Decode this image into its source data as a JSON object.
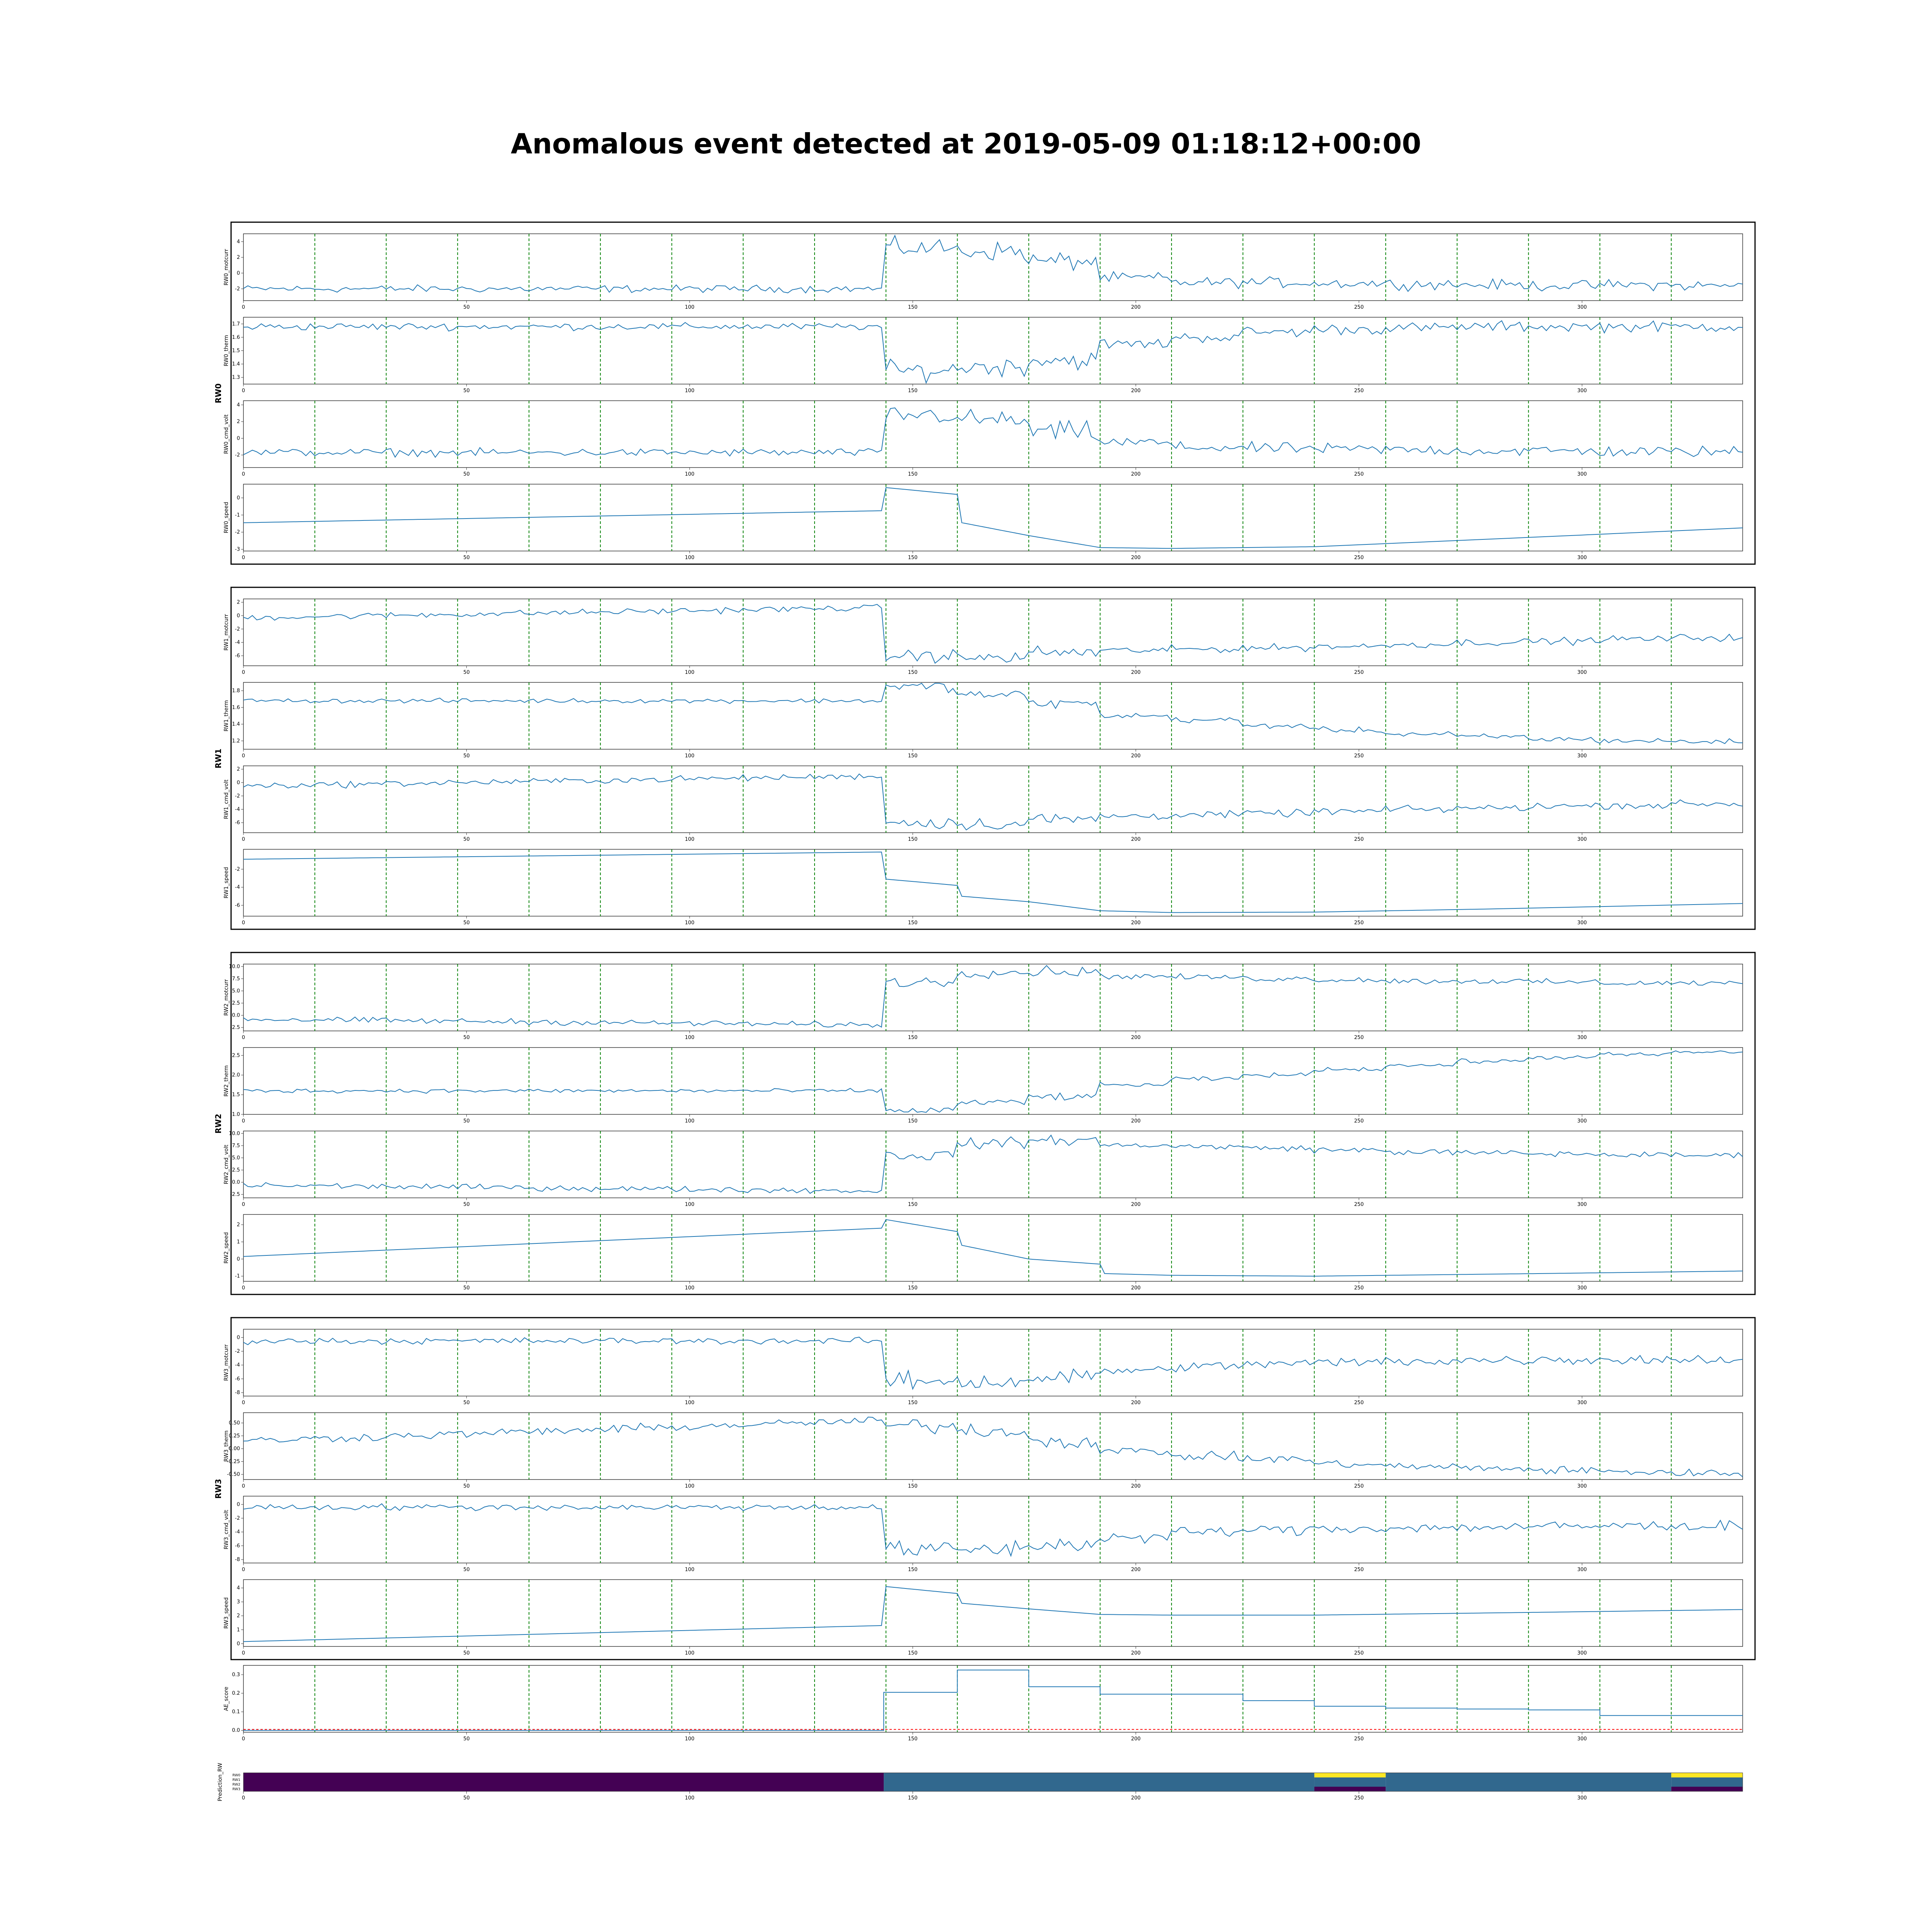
{
  "title": "Anomalous event detected at 2019-05-09 01:18:12+00:00",
  "chart_data": {
    "type": "line",
    "x_range": [
      0,
      336
    ],
    "x_ticks": [
      0,
      50,
      100,
      150,
      200,
      250,
      300
    ],
    "event_markers": [
      16,
      32,
      48,
      64,
      80,
      96,
      112,
      128,
      144,
      160,
      176,
      192,
      208,
      224,
      240,
      256,
      272,
      288,
      304,
      320
    ],
    "grid": false,
    "colors": {
      "series": "#1f77b4",
      "marker": "#008000",
      "threshold": "#ff0000"
    },
    "groups": [
      {
        "name": "RW0",
        "panels": [
          {
            "ylabel": "RW0_motcurr",
            "ylim": [
              -3.5,
              5
            ],
            "yticks": [
              "-2",
              "0",
              "2",
              "4"
            ],
            "shape": {
              "kind": "noisy",
              "pre": -2,
              "segs": [
                3.2,
                2.8,
                1.5,
                -0.6,
                -1.2,
                -1.2,
                -1.3,
                -1.4,
                -1.5,
                -1.6,
                -1.5,
                -1.6
              ],
              "noise_pre": 0.35,
              "noise_post": 0.5
            }
          },
          {
            "ylabel": "RW0_therm",
            "ylim": [
              1.25,
              1.75
            ],
            "yticks": [
              "1.3",
              "1.4",
              "1.5",
              "1.6",
              "1.7"
            ],
            "shape": {
              "kind": "noisy",
              "pre": 1.68,
              "segs": [
                1.35,
                1.38,
                1.43,
                1.55,
                1.6,
                1.64,
                1.66,
                1.67,
                1.68,
                1.68,
                1.68,
                1.68
              ],
              "noise_pre": 0.02,
              "noise_post": 0.03
            }
          },
          {
            "ylabel": "RW0_cmd_volt",
            "ylim": [
              -3.5,
              4.5
            ],
            "yticks": [
              "-2",
              "0",
              "2",
              "4"
            ],
            "shape": {
              "kind": "noisy",
              "pre": -1.7,
              "segs": [
                2.8,
                2.2,
                0.8,
                -0.5,
                -1.1,
                -1.2,
                -1.3,
                -1.4,
                -1.5,
                -1.5,
                -1.6,
                -1.6
              ],
              "noise_pre": 0.35,
              "noise_post": 0.5
            }
          },
          {
            "ylabel": "RW0_speed",
            "ylim": [
              -3.1,
              0.8
            ],
            "yticks": [
              "-3",
              "-2",
              "-1",
              "0"
            ],
            "shape": {
              "kind": "smooth",
              "pts": [
                [
                  0,
                  -1.45
                ],
                [
                  143,
                  -0.75
                ],
                [
                  144,
                  0.6
                ],
                [
                  160,
                  0.2
                ],
                [
                  161,
                  -1.45
                ],
                [
                  176,
                  -2.2
                ],
                [
                  192,
                  -2.9
                ],
                [
                  208,
                  -2.95
                ],
                [
                  240,
                  -2.85
                ],
                [
                  280,
                  -2.4
                ],
                [
                  336,
                  -1.75
                ]
              ]
            }
          }
        ]
      },
      {
        "name": "RW1",
        "panels": [
          {
            "ylabel": "RW1_motcurr",
            "ylim": [
              -7.5,
              2.5
            ],
            "yticks": [
              "-6",
              "-4",
              "-2",
              "0",
              "2"
            ],
            "shape": {
              "kind": "noisy_trend",
              "pre_start": -0.3,
              "pre_end": 1.2,
              "segs": [
                -6.0,
                -6.3,
                -5.5,
                -5.2,
                -5.0,
                -4.8,
                -4.6,
                -4.3,
                -4.0,
                -3.8,
                -3.5,
                -3.3
              ],
              "noise_pre": 0.35,
              "noise_post": 0.4
            }
          },
          {
            "ylabel": "RW1_therm",
            "ylim": [
              1.1,
              1.9
            ],
            "yticks": [
              "1.2",
              "1.4",
              "1.6",
              "1.8"
            ],
            "shape": {
              "kind": "noisy",
              "pre": 1.68,
              "segs": [
                1.85,
                1.75,
                1.65,
                1.5,
                1.45,
                1.38,
                1.33,
                1.28,
                1.25,
                1.22,
                1.2,
                1.19
              ],
              "noise_pre": 0.02,
              "noise_post": 0.025
            }
          },
          {
            "ylabel": "RW1_cmd_volt",
            "ylim": [
              -7.5,
              2.5
            ],
            "yticks": [
              "-6",
              "-4",
              "-2",
              "0",
              "2"
            ],
            "shape": {
              "kind": "noisy_trend",
              "pre_start": -0.5,
              "pre_end": 1.0,
              "segs": [
                -6.0,
                -6.2,
                -5.5,
                -5.0,
                -4.8,
                -4.6,
                -4.3,
                -4.0,
                -3.8,
                -3.5,
                -3.4,
                -3.2
              ],
              "noise_pre": 0.35,
              "noise_post": 0.4
            }
          },
          {
            "ylabel": "RW1_speed",
            "ylim": [
              -7.2,
              0.2
            ],
            "yticks": [
              "-6",
              "-4",
              "-2"
            ],
            "shape": {
              "kind": "smooth",
              "pts": [
                [
                  0,
                  -0.9
                ],
                [
                  143,
                  -0.1
                ],
                [
                  144,
                  -3.1
                ],
                [
                  160,
                  -3.8
                ],
                [
                  161,
                  -5.0
                ],
                [
                  176,
                  -5.6
                ],
                [
                  192,
                  -6.6
                ],
                [
                  208,
                  -6.8
                ],
                [
                  240,
                  -6.75
                ],
                [
                  280,
                  -6.4
                ],
                [
                  336,
                  -5.8
                ]
              ]
            }
          }
        ]
      },
      {
        "name": "RW2",
        "panels": [
          {
            "ylabel": "RW2_motcurr",
            "ylim": [
              -3.2,
              10.5
            ],
            "yticks": [
              "-2.5",
              "0.0",
              "2.5",
              "5.0",
              "7.5",
              "10.0"
            ],
            "shape": {
              "kind": "noisy_trend",
              "pre_start": -0.8,
              "pre_end": -2.0,
              "segs": [
                6.8,
                8.8,
                9.0,
                8.0,
                7.8,
                7.5,
                7.3,
                7.0,
                7.0,
                6.8,
                6.6,
                6.6
              ],
              "noise_pre": 0.45,
              "noise_post": 0.45
            }
          },
          {
            "ylabel": "RW2_therm",
            "ylim": [
              1.0,
              2.7
            ],
            "yticks": [
              "1.0",
              "1.5",
              "2.0",
              "2.5"
            ],
            "shape": {
              "kind": "noisy",
              "pre": 1.6,
              "segs": [
                1.1,
                1.3,
                1.45,
                1.75,
                1.9,
                2.0,
                2.15,
                2.25,
                2.35,
                2.45,
                2.52,
                2.58
              ],
              "noise_pre": 0.04,
              "noise_post": 0.04
            }
          },
          {
            "ylabel": "RW2_cmd_volt",
            "ylim": [
              -3.2,
              10.5
            ],
            "yticks": [
              "-2.5",
              "0.0",
              "2.5",
              "5.0",
              "7.5",
              "10.0"
            ],
            "shape": {
              "kind": "noisy_trend",
              "pre_start": -0.6,
              "pre_end": -1.8,
              "segs": [
                5.5,
                8.0,
                8.6,
                7.6,
                7.3,
                7.0,
                6.6,
                6.2,
                6.0,
                5.8,
                5.6,
                5.5
              ],
              "noise_pre": 0.45,
              "noise_post": 0.45
            }
          },
          {
            "ylabel": "RW2_speed",
            "ylim": [
              -1.3,
              2.6
            ],
            "yticks": [
              "-1",
              "0",
              "1",
              "2"
            ],
            "shape": {
              "kind": "smooth",
              "pts": [
                [
                  0,
                  0.15
                ],
                [
                  143,
                  1.8
                ],
                [
                  144,
                  2.3
                ],
                [
                  160,
                  1.6
                ],
                [
                  161,
                  0.8
                ],
                [
                  176,
                  0.0
                ],
                [
                  192,
                  -0.3
                ],
                [
                  193,
                  -0.85
                ],
                [
                  208,
                  -0.95
                ],
                [
                  240,
                  -1.0
                ],
                [
                  290,
                  -0.85
                ],
                [
                  336,
                  -0.7
                ]
              ]
            }
          }
        ]
      },
      {
        "name": "RW3",
        "panels": [
          {
            "ylabel": "RW3_motcurr",
            "ylim": [
              -8.5,
              1.2
            ],
            "yticks": [
              "-8",
              "-6",
              "-4",
              "-2",
              "0"
            ],
            "shape": {
              "kind": "noisy",
              "pre": -0.5,
              "segs": [
                -6.3,
                -6.4,
                -5.8,
                -4.8,
                -4.2,
                -3.8,
                -3.6,
                -3.4,
                -3.3,
                -3.2,
                -3.2,
                -3.2
              ],
              "noise_pre": 0.35,
              "noise_post": 0.55
            }
          },
          {
            "ylabel": "RW3_therm",
            "ylim": [
              -0.6,
              0.7
            ],
            "yticks": [
              "-0.50",
              "-0.25",
              "0.00",
              "0.25",
              "0.50"
            ],
            "shape": {
              "kind": "noisy_trend",
              "pre_start": 0.15,
              "pre_end": 0.55,
              "segs": [
                0.45,
                0.35,
                0.15,
                -0.05,
                -0.15,
                -0.2,
                -0.3,
                -0.35,
                -0.38,
                -0.42,
                -0.45,
                -0.48
              ],
              "noise_pre": 0.06,
              "noise_post": 0.06
            }
          },
          {
            "ylabel": "RW3_cmd_volt",
            "ylim": [
              -8.5,
              1.2
            ],
            "yticks": [
              "-8",
              "-6",
              "-4",
              "-2",
              "0"
            ],
            "shape": {
              "kind": "noisy",
              "pre": -0.4,
              "segs": [
                -6.6,
                -6.5,
                -5.8,
                -4.8,
                -4.0,
                -3.7,
                -3.5,
                -3.4,
                -3.3,
                -3.2,
                -3.1,
                -3.1
              ],
              "noise_pre": 0.35,
              "noise_post": 0.55
            }
          },
          {
            "ylabel": "RW3_speed",
            "ylim": [
              -0.2,
              4.6
            ],
            "yticks": [
              "0",
              "1",
              "2",
              "3",
              "4"
            ],
            "shape": {
              "kind": "smooth",
              "pts": [
                [
                  0,
                  0.15
                ],
                [
                  143,
                  1.3
                ],
                [
                  144,
                  4.1
                ],
                [
                  160,
                  3.6
                ],
                [
                  161,
                  2.9
                ],
                [
                  176,
                  2.5
                ],
                [
                  192,
                  2.1
                ],
                [
                  208,
                  2.05
                ],
                [
                  240,
                  2.05
                ],
                [
                  290,
                  2.25
                ],
                [
                  336,
                  2.45
                ]
              ]
            }
          }
        ]
      }
    ],
    "ae_score": {
      "ylabel": "AE_score",
      "ylim": [
        -0.01,
        0.35
      ],
      "yticks": [
        "0.0",
        "0.1",
        "0.2",
        "0.3"
      ],
      "threshold": 0.005,
      "steps": [
        [
          0,
          0.0
        ],
        [
          143.5,
          0.205
        ],
        [
          160,
          0.325
        ],
        [
          176,
          0.235
        ],
        [
          192,
          0.195
        ],
        [
          224,
          0.16
        ],
        [
          240,
          0.13
        ],
        [
          256,
          0.12
        ],
        [
          272,
          0.115
        ],
        [
          288,
          0.11
        ],
        [
          304,
          0.08
        ],
        [
          336,
          0.08
        ]
      ]
    },
    "heatmap": {
      "ylabel": "Prediction_RW",
      "rows": [
        "RW0",
        "RW1",
        "RW2",
        "RW3"
      ],
      "colors": {
        "low": "#440154",
        "mid": "#31688e",
        "high": "#fde725"
      }
    }
  }
}
